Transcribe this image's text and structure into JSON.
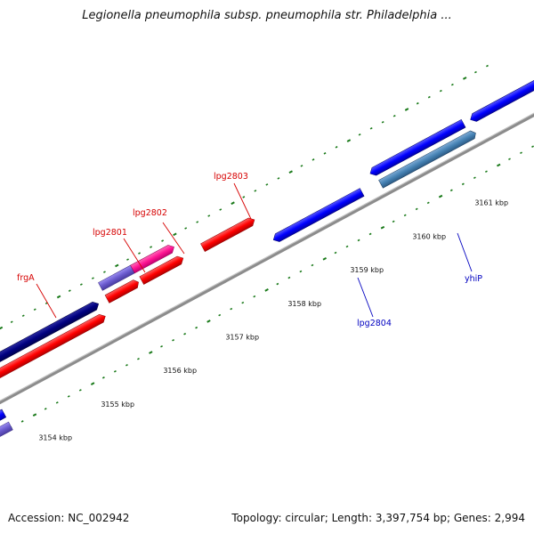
{
  "title": "Legionella pneumophila subsp. pneumophila str. Philadelphia ...",
  "footer": {
    "accession": "Accession: NC_002942",
    "stats": "Topology: circular; Length: 3,397,754 bp; Genes: 2,994"
  },
  "ticks": [
    "3154 kbp",
    "3155 kbp",
    "3156 kbp",
    "3157 kbp",
    "3158 kbp",
    "3159 kbp",
    "3160 kbp",
    "3161 kbp"
  ],
  "genes": [
    {
      "name": "frgA",
      "color": "#d60000"
    },
    {
      "name": "lpg2801",
      "color": "#d60000"
    },
    {
      "name": "lpg2802",
      "color": "#d60000"
    },
    {
      "name": "lpg2803",
      "color": "#d60000"
    },
    {
      "name": "lpg2804",
      "color": "#0000c0"
    },
    {
      "name": "yhiP",
      "color": "#0000c0"
    }
  ],
  "colors": {
    "backbone": "#8c8c8c",
    "tick": "#1a7a1a",
    "forward_gene": "#ff0000",
    "reverse_gene": "#0000ff",
    "navy_gene": "#000080",
    "slate_gene": "#6a5acd",
    "pink_gene": "#ff1493",
    "steel_gene": "#4682b4"
  }
}
